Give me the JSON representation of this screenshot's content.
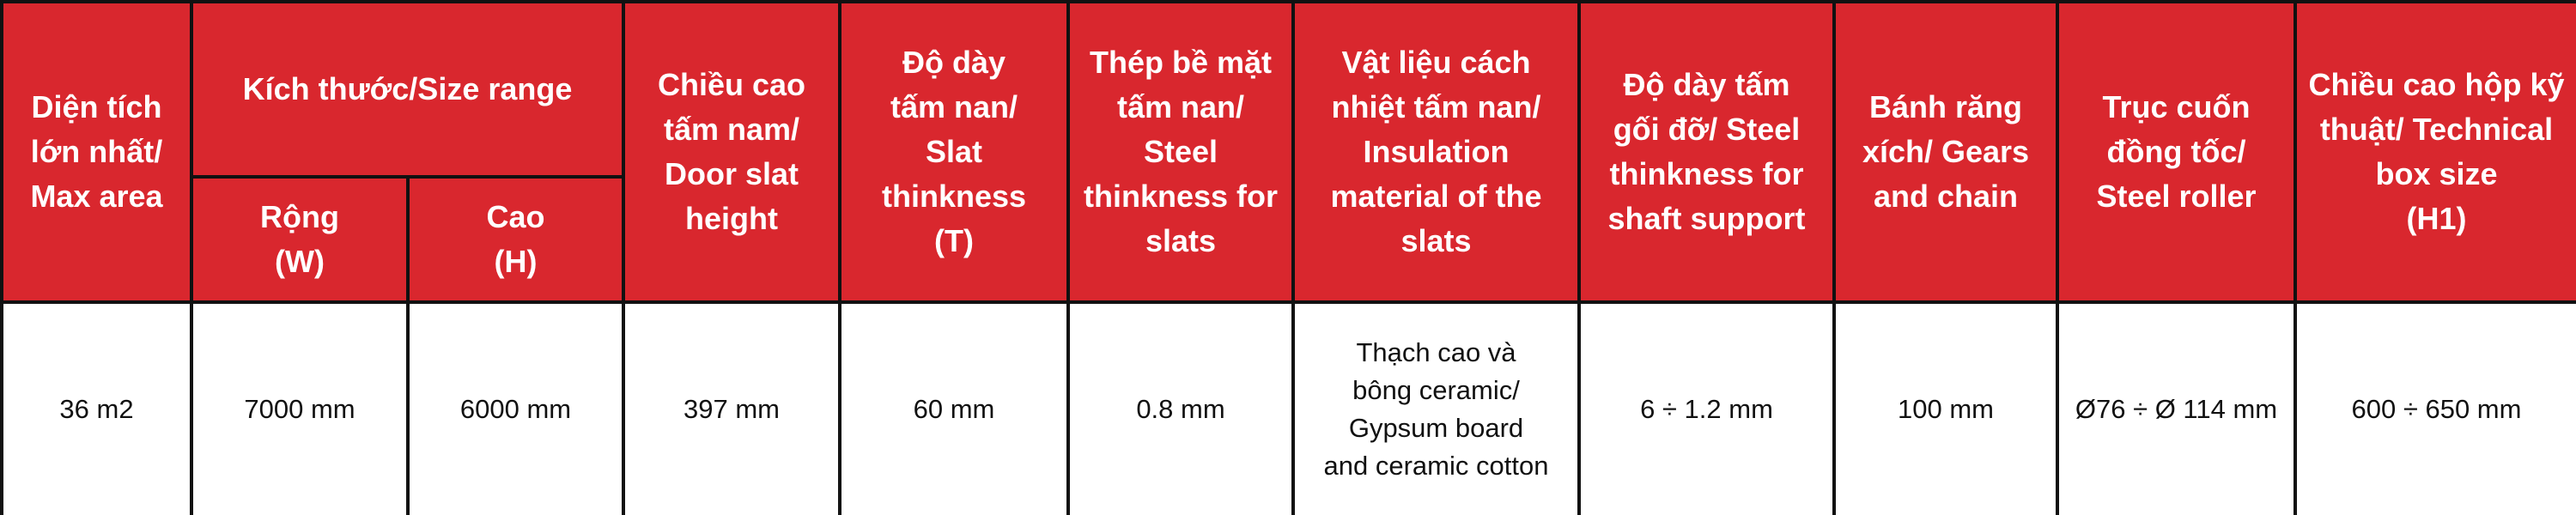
{
  "header": {
    "max_area": "Diện tích\nlớn nhất/\nMax area",
    "size_range": "Kích thước/Size range",
    "width": "Rộng\n(W)",
    "height": "Cao\n(H)",
    "slat_height": "Chiều cao\ntấm nam/\nDoor slat\nheight",
    "slat_thickness": "Độ dày\ntấm nan/\nSlat thinkness\n(T)",
    "slat_steel": "Thép bề mặt\ntấm nan/\nSteel\nthinkness for\nslats",
    "insulation": "Vật liệu cách\nnhiệt tấm nan/\nInsulation\nmaterial of the\nslats",
    "shaft_support": "Độ dày tấm\ngối đỡ/ Steel\nthinkness for\nshaft support",
    "gears": "Bánh răng\nxích/ Gears\nand chain",
    "roller": "Trục cuốn\nđồng tốc/\nSteel roller",
    "box_size": "Chiều cao hộp kỹ\nthuật/ Technical\nbox size\n(H1)"
  },
  "row": {
    "max_area": "36 m2",
    "width": "7000 mm",
    "height": "6000 mm",
    "slat_height": "397 mm",
    "slat_thickness": "60 mm",
    "slat_steel": "0.8 mm",
    "insulation": "Thạch cao và\nbông ceramic/\nGypsum board\nand ceramic cotton",
    "shaft_support": "6 ÷ 1.2 mm",
    "gears": "100 mm",
    "roller": "Ø76 ÷ Ø 114 mm",
    "box_size": "600 ÷ 650 mm"
  },
  "colors": {
    "header_bg": "#d9272e",
    "header_text": "#ffffff",
    "border": "#111111"
  }
}
